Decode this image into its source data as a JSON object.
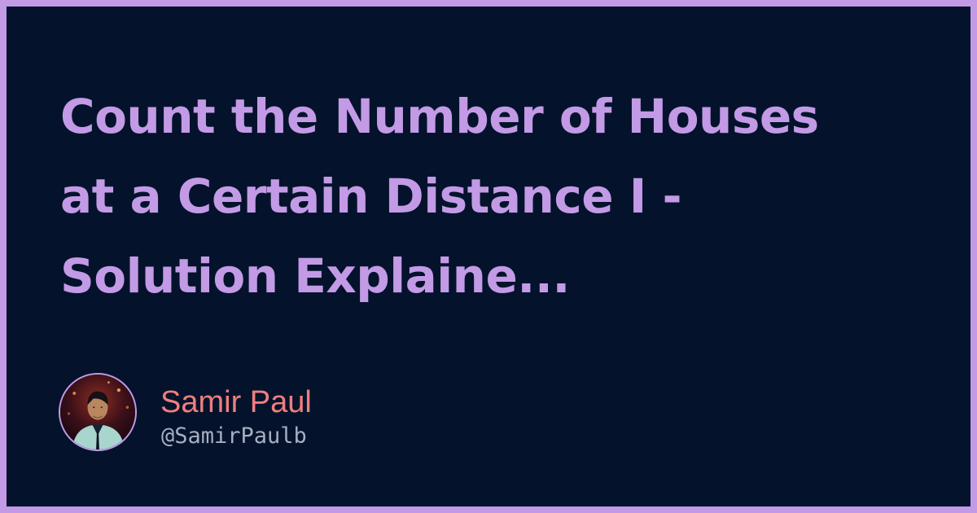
{
  "card": {
    "title_lines": [
      "Count the Number of Houses",
      "at a Certain Distance I -",
      "Solution Explaine..."
    ]
  },
  "author": {
    "name": "Samir Paul",
    "handle": "@SamirPaulb",
    "avatar_icon": "person-avatar-icon"
  },
  "colors": {
    "border": "#c39ae6",
    "background": "#04132b",
    "title": "#c39ae6",
    "name": "#ef7e7e",
    "handle": "#a7aec0"
  }
}
